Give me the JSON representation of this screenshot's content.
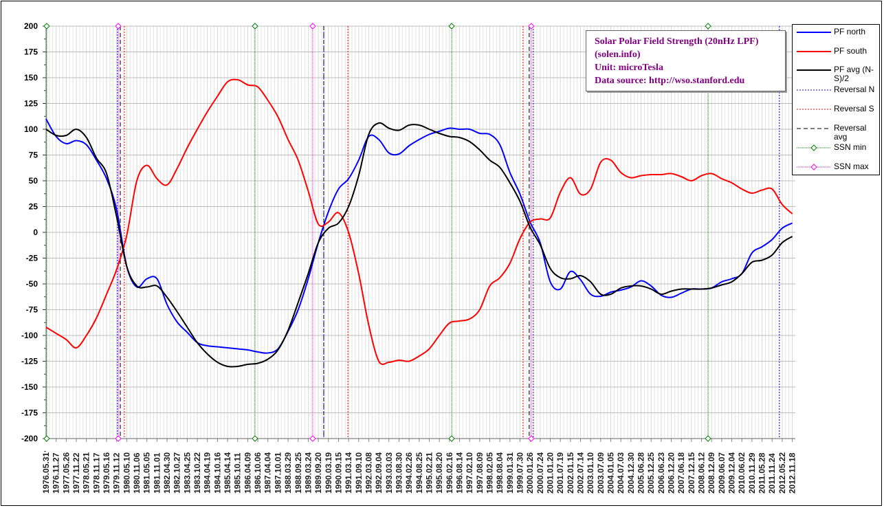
{
  "chart_data": {
    "type": "line",
    "title_lines": [
      "Solar Polar Field Strength (20nHz LPF)",
      "(solen.info)",
      "Unit: microTesla",
      "Data source: http://wso.stanford.edu"
    ],
    "xlabel": "",
    "ylabel": "",
    "ylim": [
      -200,
      200
    ],
    "yticks": [
      200,
      175,
      150,
      125,
      100,
      75,
      50,
      25,
      0,
      -25,
      -50,
      -75,
      -100,
      -125,
      -150,
      -175,
      -200
    ],
    "grid": true,
    "legend_placement": "right",
    "categories": [
      "1976.05.31",
      "1976.11.27",
      "1977.05.26",
      "1977.11.22",
      "1978.05.21",
      "1978.11.17",
      "1979.05.16",
      "1979.11.12",
      "1980.05.10",
      "1980.11.06",
      "1981.05.05",
      "1981.11.01",
      "1982.04.30",
      "1982.10.27",
      "1983.04.25",
      "1983.10.22",
      "1984.04.19",
      "1984.10.16",
      "1985.04.14",
      "1985.10.11",
      "1986.04.09",
      "1986.10.06",
      "1987.04.04",
      "1987.10.01",
      "1988.03.29",
      "1988.09.25",
      "1989.03.24",
      "1989.09.20",
      "1990.03.19",
      "1990.09.15",
      "1991.03.14",
      "1991.09.10",
      "1992.03.08",
      "1992.09.04",
      "1993.03.03",
      "1993.08.30",
      "1994.02.26",
      "1994.08.25",
      "1995.02.21",
      "1995.08.20",
      "1996.02.16",
      "1996.08.14",
      "1997.02.10",
      "1997.08.09",
      "1998.02.05",
      "1998.08.04",
      "1999.01.31",
      "1999.07.30",
      "2000.01.26",
      "2000.07.24",
      "2001.01.20",
      "2001.07.19",
      "2002.01.15",
      "2002.07.14",
      "2003.01.10",
      "2003.07.09",
      "2004.01.05",
      "2004.07.03",
      "2004.12.30",
      "2005.06.28",
      "2005.12.25",
      "2006.06.23",
      "2006.12.20",
      "2007.06.18",
      "2007.12.15",
      "2008.06.12",
      "2008.12.09",
      "2009.06.07",
      "2009.12.04",
      "2010.06.02",
      "2010.11.29",
      "2011.05.28",
      "2011.11.24",
      "2012.05.22",
      "2012.11.18"
    ],
    "x_start_year": 1976.41,
    "x_step_years": 0.4928,
    "series": [
      {
        "name": "PF north",
        "color": "#0000ff",
        "values": [
          110,
          93,
          86,
          89,
          85,
          70,
          52,
          22,
          -33,
          -53,
          -45,
          -45,
          -70,
          -87,
          -97,
          -107,
          -110,
          -111,
          -112,
          -113,
          -114,
          -116,
          -117,
          -113,
          -96,
          -75,
          -45,
          -10,
          20,
          42,
          52,
          70,
          93,
          90,
          77,
          76,
          84,
          90,
          95,
          98,
          101,
          100,
          100,
          96,
          95,
          85,
          58,
          37,
          10,
          -10,
          -48,
          -55,
          -38,
          -46,
          -60,
          -62,
          -58,
          -56,
          -53,
          -47,
          -52,
          -61,
          -63,
          -59,
          -55,
          -55,
          -54,
          -48,
          -45,
          -40,
          -20,
          -14,
          -7,
          4,
          9
        ]
      },
      {
        "name": "PF south",
        "color": "#ff0000",
        "values": [
          -92,
          -98,
          -104,
          -112,
          -100,
          -83,
          -60,
          -36,
          -3,
          50,
          65,
          52,
          46,
          62,
          82,
          100,
          117,
          132,
          146,
          148,
          143,
          141,
          128,
          112,
          90,
          70,
          40,
          8,
          10,
          19,
          0,
          -40,
          -90,
          -125,
          -126,
          -124,
          -125,
          -120,
          -113,
          -100,
          -88,
          -86,
          -84,
          -75,
          -52,
          -44,
          -30,
          -6,
          10,
          13,
          14,
          39,
          53,
          37,
          42,
          68,
          70,
          58,
          53,
          55,
          56,
          56,
          57,
          54,
          50,
          55,
          57,
          52,
          48,
          42,
          38,
          41,
          42,
          27,
          18
        ]
      },
      {
        "name": "PF avg (N-S)/2",
        "color": "#000000",
        "values": [
          100,
          94,
          94,
          100,
          92,
          72,
          57,
          15,
          -33,
          -52,
          -53,
          -52,
          -63,
          -77,
          -92,
          -107,
          -118,
          -126,
          -130,
          -130,
          -128,
          -127,
          -123,
          -114,
          -95,
          -68,
          -40,
          -10,
          4,
          9,
          25,
          55,
          95,
          106,
          101,
          99,
          104,
          104,
          100,
          96,
          93,
          92,
          88,
          80,
          70,
          63,
          48,
          30,
          5,
          -12,
          -35,
          -44,
          -45,
          -42,
          -48,
          -60,
          -60,
          -54,
          -52,
          -52,
          -55,
          -60,
          -57,
          -55,
          -55,
          -55,
          -54,
          -51,
          -48,
          -40,
          -29,
          -27,
          -22,
          -10,
          -4
        ]
      }
    ],
    "markers": [
      {
        "name": "Reversal N",
        "color": "#0000ff",
        "style": "dotted",
        "years": [
          1979.9,
          1989.98,
          2000.22,
          2012.25
        ]
      },
      {
        "name": "Reversal S",
        "color": "#ff0000",
        "style": "dotted",
        "years": [
          1980.24,
          1991.16,
          1999.72
        ]
      },
      {
        "name": "Reversal avg",
        "color": "#000000",
        "style": "dashed",
        "years": [
          1980.04,
          1989.98,
          2000.02
        ]
      },
      {
        "name": "SSN min",
        "color": "#008000",
        "style": "dotted-diamond",
        "years": [
          1976.44,
          1986.62,
          1996.23,
          2008.76
        ]
      },
      {
        "name": "SSN max",
        "color": "#ff00ff",
        "style": "dotted-diamond",
        "years": [
          1979.94,
          1989.44,
          2000.12
        ]
      }
    ],
    "legend": [
      "PF north",
      "PF south",
      "PF avg (N-S)/2",
      "Reversal N",
      "Reversal S",
      "Reversal avg",
      "SSN min",
      "SSN max"
    ]
  }
}
